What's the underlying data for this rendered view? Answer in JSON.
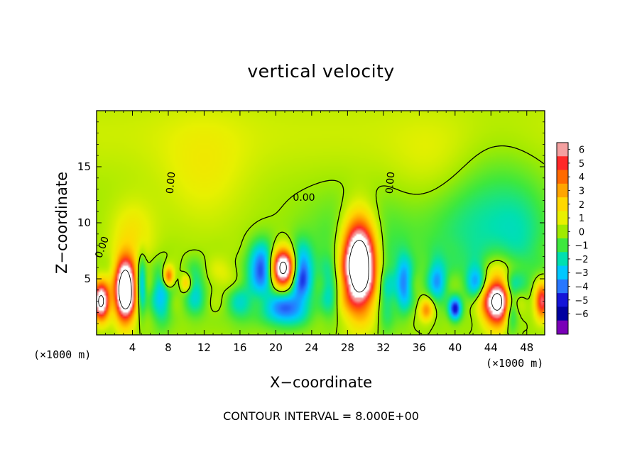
{
  "chart_data": {
    "type": "heatmap",
    "title": "vertical velocity",
    "xlabel": "X−coordinate",
    "ylabel": "Z−coordinate",
    "x_unit_label": "(×1000 m)",
    "xlim": [
      0,
      50
    ],
    "ylim": [
      0,
      20
    ],
    "x_ticks": [
      4,
      8,
      12,
      16,
      20,
      24,
      28,
      32,
      36,
      40,
      44,
      48
    ],
    "y_ticks": [
      5,
      10,
      15
    ],
    "colorbar": {
      "ticks": [
        "6",
        "5",
        "4",
        "3",
        "2",
        "1",
        "0",
        "−1",
        "−2",
        "−3",
        "−4",
        "−5",
        "−6"
      ],
      "colors": [
        "#f4a0a0",
        "#ff2828",
        "#ff6a00",
        "#ffa500",
        "#ffd800",
        "#e8f000",
        "#a0ea00",
        "#3ee83e",
        "#00e0b0",
        "#00c8ff",
        "#2878ff",
        "#1414d8",
        "#0000a0",
        "#7a00b8"
      ]
    },
    "contour_labels": [
      "0.00",
      "0.00",
      "0.00",
      "0.00"
    ],
    "contour_interval_note": "CONTOUR INTERVAL = 8.000E+00",
    "field_features": [
      {
        "x": 3.2,
        "z": 4.0,
        "w": 12.0,
        "sx": 1.1,
        "sz": 2.6
      },
      {
        "x": 29.3,
        "z": 6.3,
        "w": 13.0,
        "sx": 1.9,
        "sz": 3.9
      },
      {
        "x": 20.8,
        "z": 6.0,
        "w": 10.0,
        "sx": 1.4,
        "sz": 1.6
      },
      {
        "x": 0.5,
        "z": 3.0,
        "w": 9.0,
        "sx": 0.9,
        "sz": 1.6
      },
      {
        "x": 49.7,
        "z": 3.0,
        "w": 6.0,
        "sx": 0.8,
        "sz": 1.5
      },
      {
        "x": 8.0,
        "z": 5.2,
        "w": 5.0,
        "sx": 0.6,
        "sz": 0.9
      },
      {
        "x": 44.8,
        "z": 3.5,
        "w": 12.0,
        "sx": 1.7,
        "sz": 2.3
      },
      {
        "x": 29.3,
        "z": 8.0,
        "w": -1.6,
        "sx": 5.5,
        "sz": 4.5
      },
      {
        "x": 18.5,
        "z": 6.0,
        "w": -5.0,
        "sx": 1.5,
        "sz": 2.2
      },
      {
        "x": 22.8,
        "z": 5.5,
        "w": -5.0,
        "sx": 1.2,
        "sz": 2.4
      },
      {
        "x": 21.0,
        "z": 2.3,
        "w": -4.0,
        "sx": 2.4,
        "sz": 1.5
      },
      {
        "x": 5.0,
        "z": 4.5,
        "w": -3.5,
        "sx": 0.5,
        "sz": 2.5
      },
      {
        "x": 7.2,
        "z": 3.5,
        "w": -3.0,
        "sx": 1.1,
        "sz": 2.5
      },
      {
        "x": 11.0,
        "z": 4.0,
        "w": -2.5,
        "sx": 1.2,
        "sz": 2.3
      },
      {
        "x": 16.0,
        "z": 3.0,
        "w": -2.0,
        "sx": 1.5,
        "sz": 2.0
      },
      {
        "x": 34.3,
        "z": 4.5,
        "w": -3.5,
        "sx": 0.9,
        "sz": 2.4
      },
      {
        "x": 38.0,
        "z": 4.8,
        "w": -3.0,
        "sx": 1.0,
        "sz": 2.0
      },
      {
        "x": 40.0,
        "z": 2.3,
        "w": -5.0,
        "sx": 0.7,
        "sz": 1.0
      },
      {
        "x": 42.3,
        "z": 4.8,
        "w": -2.5,
        "sx": 1.0,
        "sz": 1.8
      },
      {
        "x": 45.0,
        "z": 4.5,
        "w": -5.0,
        "sx": 2.1,
        "sz": 1.3
      },
      {
        "x": 46.2,
        "z": 2.5,
        "w": -4.5,
        "sx": 0.8,
        "sz": 2.0
      },
      {
        "x": 36.8,
        "z": 2.2,
        "w": 3.5,
        "sx": 0.8,
        "sz": 1.0
      },
      {
        "x": 10.0,
        "z": 4.6,
        "w": 3.0,
        "sx": 0.6,
        "sz": 0.8
      },
      {
        "x": 14.0,
        "z": 5.2,
        "w": 1.0,
        "sx": 2.0,
        "sz": 1.5
      },
      {
        "x": 26.0,
        "z": 4.0,
        "w": -2.0,
        "sx": 1.0,
        "sz": 2.5
      },
      {
        "x": 32.3,
        "z": 3.5,
        "w": -2.0,
        "sx": 1.0,
        "sz": 3.0
      },
      {
        "x": 42.5,
        "z": 9.0,
        "w": -1.5,
        "sx": 6.0,
        "sz": 4.5
      },
      {
        "x": 4.0,
        "z": 9.0,
        "w": 1.5,
        "sx": 2.5,
        "sz": 3.0
      },
      {
        "x": 47.5,
        "z": 9.0,
        "w": -1.0,
        "sx": 3.0,
        "sz": 4.0
      },
      {
        "x": 12.0,
        "z": 14.0,
        "w": 1.0,
        "sx": 5.0,
        "sz": 5.0
      },
      {
        "x": 38.0,
        "z": 15.0,
        "w": 0.7,
        "sx": 5.0,
        "sz": 4.0
      }
    ]
  }
}
